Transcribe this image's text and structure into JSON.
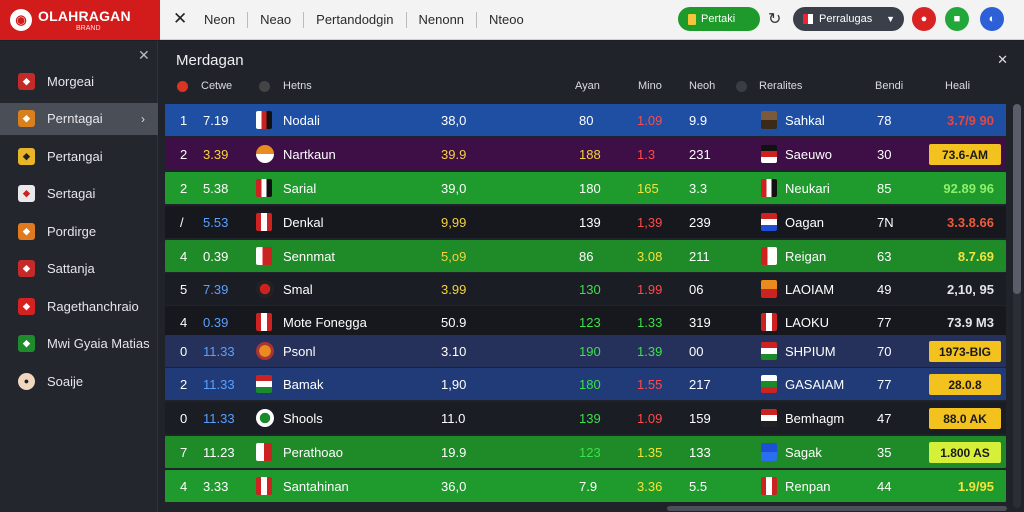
{
  "brand": {
    "name": "OLAHRAGAN",
    "sub": "BRAND"
  },
  "nav": [
    "Neon",
    "Neao",
    "Pertandodgin",
    "Nenonn",
    "Nteoo"
  ],
  "live_label": "Pertaki",
  "select_label": "Perralugas",
  "sidebar": {
    "items": [
      {
        "label": "Morgeai",
        "icon": "shield-red-icon",
        "active": false
      },
      {
        "label": "Perntagai",
        "icon": "shield-orange-icon",
        "active": true
      },
      {
        "label": "Pertangai",
        "icon": "shield-yellow-icon",
        "active": false
      },
      {
        "label": "Sertagai",
        "icon": "shield-white-icon",
        "active": false
      },
      {
        "label": "Pordirge",
        "icon": "flag-orange-icon",
        "active": false
      },
      {
        "label": "Sattanja",
        "icon": "shield-red-icon",
        "active": false
      },
      {
        "label": "Ragethanchraio",
        "icon": "flag-red-icon",
        "active": false
      },
      {
        "label": "Mwi Gyaia Matias",
        "icon": "player-green-icon",
        "active": false
      },
      {
        "label": "Soaije",
        "icon": "ball-icon",
        "active": false
      }
    ]
  },
  "panel": {
    "title": "Merdagan"
  },
  "columns": {
    "home_pos": "Cetwe",
    "home_team": "Hetns",
    "ayan": "Ayan",
    "mino": "Mino",
    "neoh": "Neoh",
    "away_team": "Reralites",
    "bendi": "Bendi",
    "heali": "Heali"
  },
  "rows": [
    {
      "pos": "1",
      "time": "7.19",
      "team": "Nodali",
      "odds": "38,0",
      "a": "80",
      "b": "1.09",
      "c": "9.9",
      "away": "Sahkal",
      "n": "78",
      "res": "3.7/9 90",
      "bg": "#1e4fa3",
      "res_color": "#e64640",
      "odds_color": "#ffffff",
      "a_color": "#ffffff",
      "b_color": "#ff4a4a",
      "badge": false
    },
    {
      "pos": "2",
      "time": "3.39",
      "team": "Nartkaun",
      "odds": "39.9",
      "a": "188",
      "b": "1.3",
      "c": "231",
      "away": "Saeuwo",
      "n": "30",
      "res": "73.6-AM",
      "bg": "#3d0f46",
      "res_color": "#1a1a1a",
      "odds_color": "#f5d33a",
      "a_color": "#f5d33a",
      "b_color": "#ff4a4a",
      "badge": true,
      "time_color": "#f5d33a"
    },
    {
      "pos": "2",
      "time": "5.38",
      "team": "Sarial",
      "odds": "39,0",
      "a": "180",
      "b": "165",
      "c": "3.3",
      "away": "Neukari",
      "n": "85",
      "res": "92.89 96",
      "bg": "#1f9a2c",
      "res_color": "#8df06a",
      "odds_color": "#ffffff",
      "a_color": "#ffffff",
      "b_color": "#f5e33a",
      "badge": false
    },
    {
      "pos": "/",
      "time": "5.53",
      "team": "Denkal",
      "odds": "9,99",
      "a": "139",
      "b": "1,39",
      "c": "239",
      "away": "Oagan",
      "n": "7N",
      "res": "3.3.8.66",
      "bg": "#16181e",
      "res_color": "#f05a3c",
      "odds_color": "#f5d33a",
      "a_color": "#ffffff",
      "b_color": "#ff4a4a",
      "badge": false,
      "time_color": "#5aa0ff"
    },
    {
      "pos": "4",
      "time": "0.39",
      "team": "Sennmat",
      "odds": "5,o9",
      "a": "86",
      "b": "3.08",
      "c": "211",
      "away": "Reigan",
      "n": "63",
      "res": "8.7.69",
      "bg": "#1f8a28",
      "res_color": "#f5e33a",
      "odds_color": "#f5d33a",
      "a_color": "#ffffff",
      "b_color": "#f5e33a",
      "badge": false
    },
    {
      "pos": "5",
      "time": "7.39",
      "team": "Smal",
      "odds": "3.99",
      "a": "130",
      "b": "1.99",
      "c": "06",
      "away": "LAOIAM",
      "n": "49",
      "res": "2,10, 95",
      "bg": "#1a1d24",
      "res_color": "#e6e6ea",
      "odds_color": "#f5d33a",
      "a_color": "#3ce04a",
      "b_color": "#ff4a4a",
      "badge": false,
      "time_color": "#5aa0ff"
    },
    {
      "pos": "4",
      "time": "0.39",
      "team": "Mote Fonegga",
      "odds": "50.9",
      "a": "123",
      "b": "1.33",
      "c": "319",
      "away": "LAOKU",
      "n": "77",
      "res": "73.9 M3",
      "bg": "#16181e",
      "res_color": "#e6e6ea",
      "odds_color": "#ffffff",
      "a_color": "#3ce04a",
      "b_color": "#3ce04a",
      "badge": false,
      "time_color": "#5aa0ff"
    },
    {
      "pos": "0",
      "time": "11.33",
      "team": "Psonl",
      "odds": "3.10",
      "a": "190",
      "b": "1.39",
      "c": "00",
      "away": "SHPIUM",
      "n": "70",
      "res": "1973-BIG",
      "bg": "#25315a",
      "res_color": "#1a1a1a",
      "odds_color": "#ffffff",
      "a_color": "#3ce04a",
      "b_color": "#3ce04a",
      "badge": true,
      "time_color": "#5aa0ff"
    },
    {
      "pos": "2",
      "time": "11.33",
      "team": "Bamak",
      "odds": "1,90",
      "a": "180",
      "b": "1.55",
      "c": "217",
      "away": "GASAIAM",
      "n": "77",
      "res": "28.0.8",
      "bg": "#203b78",
      "res_color": "#1a1a1a",
      "odds_color": "#ffffff",
      "a_color": "#3ce04a",
      "b_color": "#ff4a4a",
      "badge": true,
      "time_color": "#5aa0ff"
    },
    {
      "pos": "0",
      "time": "11.33",
      "team": "Shools",
      "odds": "11.0",
      "a": "139",
      "b": "1.09",
      "c": "159",
      "away": "Bemhagm",
      "n": "47",
      "res": "88.0 AK",
      "bg": "#1a1d24",
      "res_color": "#1a1a1a",
      "odds_color": "#ffffff",
      "a_color": "#3ce04a",
      "b_color": "#ff4a4a",
      "badge": true,
      "time_color": "#5aa0ff"
    },
    {
      "pos": "7",
      "time": "11.23",
      "team": "Perathoao",
      "odds": "19.9",
      "a": "123",
      "b": "1.35",
      "c": "133",
      "away": "Sagak",
      "n": "35",
      "res": "1.800 AS",
      "bg": "#1f8a28",
      "res_color": "#1a1a1a",
      "odds_color": "#ffffff",
      "a_color": "#3ce04a",
      "b_color": "#f5e33a",
      "badge": true,
      "badge_color": "#d6f03a"
    },
    {
      "pos": "4",
      "time": "3.33",
      "team": "Santahinan",
      "odds": "36,0",
      "a": "7.9",
      "b": "3.36",
      "c": "5.5",
      "away": "Renpan",
      "n": "44",
      "res": "1.9/95",
      "bg": "#1f9a2c",
      "res_color": "#f5e33a",
      "odds_color": "#ffffff",
      "a_color": "#ffffff",
      "b_color": "#f5e33a",
      "badge": false
    }
  ],
  "colors": {
    "accent": "#d21c1c",
    "live": "#1e9a2b"
  }
}
